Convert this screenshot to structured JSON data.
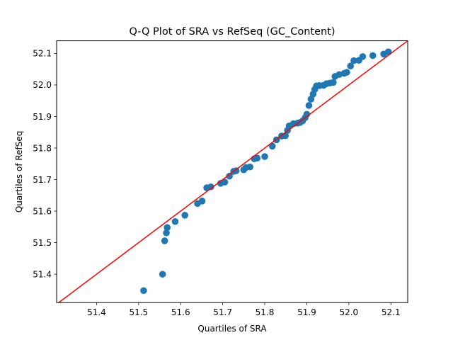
{
  "chart_data": {
    "type": "scatter",
    "title": "Q-Q Plot of SRA vs RefSeq (GC_Content)",
    "xlabel": "Quartiles of SRA",
    "ylabel": "Quartiles of RefSeq",
    "xlim": [
      51.305,
      52.14
    ],
    "ylim": [
      51.31,
      52.14
    ],
    "xticks": [
      "51.4",
      "51.5",
      "51.6",
      "51.7",
      "51.8",
      "51.9",
      "52.0",
      "52.1"
    ],
    "yticks": [
      "51.4",
      "51.5",
      "51.6",
      "51.7",
      "51.8",
      "51.9",
      "52.0",
      "52.1"
    ],
    "grid": false,
    "point_color": "#1f77b4",
    "line_color": "#ff0000",
    "reference_line": [
      [
        51.305,
        51.305
      ],
      [
        52.14,
        52.14
      ]
    ],
    "points": [
      [
        51.512,
        51.348
      ],
      [
        51.557,
        51.4
      ],
      [
        51.562,
        51.506
      ],
      [
        51.566,
        51.531
      ],
      [
        51.568,
        51.548
      ],
      [
        51.587,
        51.567
      ],
      [
        51.61,
        51.587
      ],
      [
        51.64,
        51.624
      ],
      [
        51.651,
        51.632
      ],
      [
        51.662,
        51.674
      ],
      [
        51.672,
        51.677
      ],
      [
        51.695,
        51.688
      ],
      [
        51.705,
        51.692
      ],
      [
        51.716,
        51.711
      ],
      [
        51.726,
        51.726
      ],
      [
        51.732,
        51.728
      ],
      [
        51.75,
        51.731
      ],
      [
        51.755,
        51.738
      ],
      [
        51.765,
        51.74
      ],
      [
        51.775,
        51.766
      ],
      [
        51.782,
        51.768
      ],
      [
        51.8,
        51.773
      ],
      [
        51.818,
        51.806
      ],
      [
        51.828,
        51.826
      ],
      [
        51.84,
        51.838
      ],
      [
        51.849,
        51.839
      ],
      [
        51.854,
        51.856
      ],
      [
        51.858,
        51.87
      ],
      [
        51.868,
        51.877
      ],
      [
        51.878,
        51.879
      ],
      [
        51.884,
        51.881
      ],
      [
        51.89,
        51.886
      ],
      [
        51.896,
        51.896
      ],
      [
        51.9,
        51.907
      ],
      [
        51.905,
        51.935
      ],
      [
        51.91,
        51.955
      ],
      [
        51.915,
        51.971
      ],
      [
        51.919,
        51.986
      ],
      [
        51.923,
        51.997
      ],
      [
        51.93,
        51.998
      ],
      [
        51.94,
        51.999
      ],
      [
        51.947,
        52.004
      ],
      [
        51.955,
        52.006
      ],
      [
        51.963,
        52.008
      ],
      [
        51.967,
        52.027
      ],
      [
        51.977,
        52.033
      ],
      [
        51.989,
        52.037
      ],
      [
        51.995,
        52.04
      ],
      [
        52.004,
        52.06
      ],
      [
        52.012,
        52.077
      ],
      [
        52.024,
        52.078
      ],
      [
        52.033,
        52.09
      ],
      [
        52.057,
        52.093
      ],
      [
        52.083,
        52.098
      ],
      [
        52.094,
        52.105
      ]
    ]
  }
}
